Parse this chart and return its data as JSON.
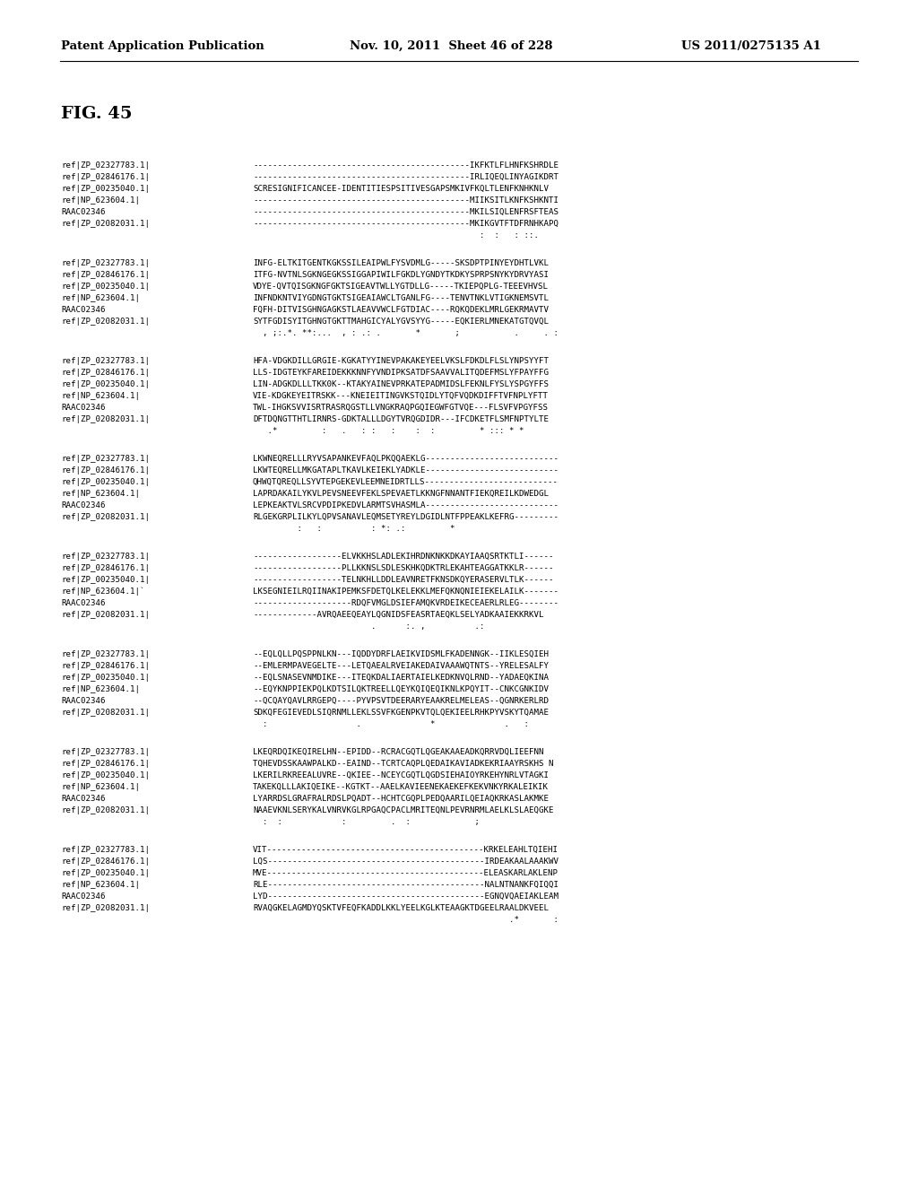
{
  "header_left": "Patent Application Publication",
  "header_middle": "Nov. 10, 2011  Sheet 46 of 228",
  "header_right": "US 2011/0275135 A1",
  "fig_label": "FIG. 45",
  "background_color": "#ffffff",
  "text_color": "#000000",
  "header_font_size": 9.5,
  "body_font_size": 6.6,
  "label_font_size": 6.6,
  "fig_label_font_size": 14,
  "alignment_blocks": [
    {
      "rows": [
        [
          "ref|ZP_02327783.1|",
          "--------------------------------------------IKFKTLFLHNFKSHRDLE"
        ],
        [
          "ref|ZP_02846176.1|",
          "--------------------------------------------IRLIQEQLINYAGIKDRT"
        ],
        [
          "ref|ZP_00235040.1|",
          "SCRESIGNIFICANCEE-IDENTITIESPSITIVESGAPSMKIVFKQLTLENFKNHKNLV"
        ],
        [
          "ref|NP_623604.1|",
          "--------------------------------------------MIIKSITLKNFKSHKNTI"
        ],
        [
          "RAAC02346",
          "--------------------------------------------MKILSIQLENFRSFTEAS"
        ],
        [
          "ref|ZP_02082031.1|",
          "--------------------------------------------MKIKGVTFTDFRNHKAPQ"
        ],
        [
          "",
          "                                              :  :   : ::.      "
        ]
      ]
    },
    {
      "rows": [
        [
          "ref|ZP_02327783.1|",
          "INFG-ELTKITGENTKGKSSILEAIPWLFYSVDMLG-----SKSDPTPINYEYDHTLVKL"
        ],
        [
          "ref|ZP_02846176.1|",
          "ITFG-NVTNLSGKNGEGKSSIGGAPIWILFGKDLYGNDYTKDKYSPRPSNYKYDRVYASI"
        ],
        [
          "ref|ZP_00235040.1|",
          "VDYE-QVTQISGKNGFGKTSIGEAVTWLLYGTDLLG-----TKIEPQPLG-TEEEVHVSL"
        ],
        [
          "ref|NP_623604.1|",
          "INFNDKNTVIYGDNGTGKTSIGEAIAWCLTGANLFG----TENVTNKLVTIGKNEMSVTL"
        ],
        [
          "RAAC02346",
          "FQFH-DITVISGHNGAGKSTLAEAVVWCLFGTDIAC----RQKQDEKLMRLGEKRMAVTV"
        ],
        [
          "ref|ZP_02082031.1|",
          "SYTFGDISYITGHNGTGKTTMAHGICYALYGVSYYG-----EQKIERLMNEKATGTQVQL"
        ],
        [
          "",
          "  , ;:.*. **:...  , : .: .       *       ;           .     . :"
        ]
      ]
    },
    {
      "rows": [
        [
          "ref|ZP_02327783.1|",
          "HFA-VDGKDILLGRGIE-KGKATYYINEVPAKAKEYEELVKSLFDKDLFLSLYNPSYYFT"
        ],
        [
          "ref|ZP_02846176.1|",
          "LLS-IDGTEYKFAREIDEKKKNNFYVNDIPKSATDFSAAVVALITQDEFMSLYFPAYFFG"
        ],
        [
          "ref|ZP_00235040.1|",
          "LIN-ADGKDLLLTKK0K--KTAKYAINEVPRKATEPADMIDSLFEKNLFYSLYSPGYFFS"
        ],
        [
          "ref|NP_623604.1|",
          "VIE-KDGKEYEITRSKK---KNEIEITINGVKSTQIDLYTQFVQDKDIFFTVFNPLYFTT"
        ],
        [
          "RAAC02346",
          "TWL-IHGKSVVISRTRASRQGSTLLVNGKRAQPGQIEGWFGTVQE---FLSVFVPGYFSS"
        ],
        [
          "ref|ZP_02082031.1|",
          "DFTDQNGTTHTLIRNRS-GDKTALLLDGYTVRQGDIDR---IFCDKETFLSMFNPTYLTE"
        ],
        [
          "",
          "   .*         :   .   : :   :    :  :         * ::: * *       "
        ]
      ]
    },
    {
      "rows": [
        [
          "ref|ZP_02327783.1|",
          "LKWNEQRELLLRYVSAPANKEVFAQLPKQQAEKLG---------------------------"
        ],
        [
          "ref|ZP_02846176.1|",
          "LKWTEQRELLMKGATAPLTKAVLKEIEKLYADKLE---------------------------"
        ],
        [
          "ref|ZP_00235040.1|",
          "QHWQTQREQLLSYVTEPGEKEVLEEMNEIDRTLLS---------------------------"
        ],
        [
          "ref|NP_623604.1|",
          "LAPRDAKAILYKVLPEVSNEEVFEKLSPEVAETLKKNGFNNANTFIEKQREILKDWEDGL"
        ],
        [
          "RAAC02346",
          "LEPKEAKTVLSRCVPDIPKEDVLARMTSVHASMLA---------------------------"
        ],
        [
          "ref|ZP_02082031.1|",
          "RLGEKGRPLILKYLQPVSANAVLEQMSETYREYLDGIDLNTFPPEAKLKEFRG---------"
        ],
        [
          "",
          "         :   :          : *: .:         *                      "
        ]
      ]
    },
    {
      "rows": [
        [
          "ref|ZP_02327783.1|",
          "------------------ELVKKHSLADLEKIHRDNKNKKDKAYIAAQSRTKTLI------"
        ],
        [
          "ref|ZP_02846176.1|",
          "------------------PLLKKNSLSDLESKHKQDKTRLEKAHTEAGGATKKLR------"
        ],
        [
          "ref|ZP_00235040.1|",
          "------------------TELNKHLLDDLEAVNRETFKNSDKQYERASERVLTLK------"
        ],
        [
          "ref|NP_623604.1|`",
          "LKSEGNIEILRQIINAKIPEMKSFDETQLKELEKKLMEFQKNQNIEIEKELAILK-------"
        ],
        [
          "RAAC02346",
          "--------------------RDQFVMGLDSIEFAMQKVRDEIKECEAERLRLEG--------"
        ],
        [
          "ref|ZP_02082031.1|",
          "-------------AVRQAEEQEAYLQGNIDSFEASRTAEQKLSELYADKAAIEKKRKVL"
        ],
        [
          "",
          "                        .      :. ,          .:                "
        ]
      ]
    },
    {
      "rows": [
        [
          "ref|ZP_02327783.1|",
          "--EQLQLLPQSPPNLKN---IQDDYDRFLAEIKVIDSMLFKADENNGK--IIKLESQIEH"
        ],
        [
          "ref|ZP_02846176.1|",
          "--EMLERMPAVEGELTE---LETQAEALRVEIAKEDAIVAAAWQTNTS--YRELESALFY"
        ],
        [
          "ref|ZP_00235040.1|",
          "--EQLSNASEVNMDIKE---ITEQKDALIAERTAIELKEDKNVQLRND--YADAEQKINA"
        ],
        [
          "ref|NP_623604.1|",
          "--EQYKNPPIEKPQLKDTSILQKTREELLQEYKQIQEQIKNLKPQYIT--CNKCGNKIDV"
        ],
        [
          "RAAC02346",
          "--QCQAYQAVLRRGEPQ----PYVPSVTDEERARYEAAKRELMELEAS--QGNRKERLRD"
        ],
        [
          "ref|ZP_02082031.1|",
          "SDKQFEGIEVEDLSIQRNMLLEKLSSVFKGENPKVTQLQEKIEELRHKPYVSKYTQAMAE"
        ],
        [
          "",
          "  :                  .              *              .   :       "
        ]
      ]
    },
    {
      "rows": [
        [
          "ref|ZP_02327783.1|",
          "LKEQRDQIKEQIRELHN--EPIDD--RCRACGQTLQGEAKAAEADKQRRVDQLIEEFNN"
        ],
        [
          "ref|ZP_02846176.1|",
          "TQHEVDSSKAAWPALKD--EAIND--TCRTCAQPLQEDAIKAVIADKEKRIAAYRSKHS N"
        ],
        [
          "ref|ZP_00235040.1|",
          "LKERILRKREEALUVRE--QKIEE--NCEYCGQTLQGDSIEHAIOYRKEHYNRLVTAGKI"
        ],
        [
          "ref|NP_623604.1|",
          "TAKEKQLLLAKIQEIKE--KGTKT--AAELKAVIEENEKAEKEFKEKVNKYRKALEIKIK"
        ],
        [
          "RAAC02346",
          "LYARRDSLGRAFRALRDSLPQADT--HCHTCGQPLPEDQAARILQEIAQKRKASLAKMKE"
        ],
        [
          "ref|ZP_02082031.1|",
          "NAAEVKNLSERYKALVNRVKGLRPGAQCPACLMRITEQNLPEVRNRMLAELKLSLAEQGKE"
        ],
        [
          "",
          "  :  :            :         .  :             ;                 "
        ]
      ]
    },
    {
      "rows": [
        [
          "ref|ZP_02327783.1|",
          "VIT--------------------------------------------KRKELEAHLTQIEHI"
        ],
        [
          "ref|ZP_02846176.1|",
          "LQS--------------------------------------------IRDEAKAALAAAKWV"
        ],
        [
          "ref|ZP_00235040.1|",
          "MVE--------------------------------------------ELEASKARLAKLENP"
        ],
        [
          "ref|NP_623604.1|",
          "RLE--------------------------------------------NALNTNANKFQIQQI"
        ],
        [
          "RAAC02346",
          "LYD--------------------------------------------EGNQVQAEIAKLEAM"
        ],
        [
          "ref|ZP_02082031.1|",
          "RVAQGKELAGMDYQSKTVFEQFKADDLKKLYEELKGLKTEAAGKTDGEELRAALDKVEEL"
        ],
        [
          "",
          "                                                    .*       :  "
        ]
      ]
    }
  ]
}
